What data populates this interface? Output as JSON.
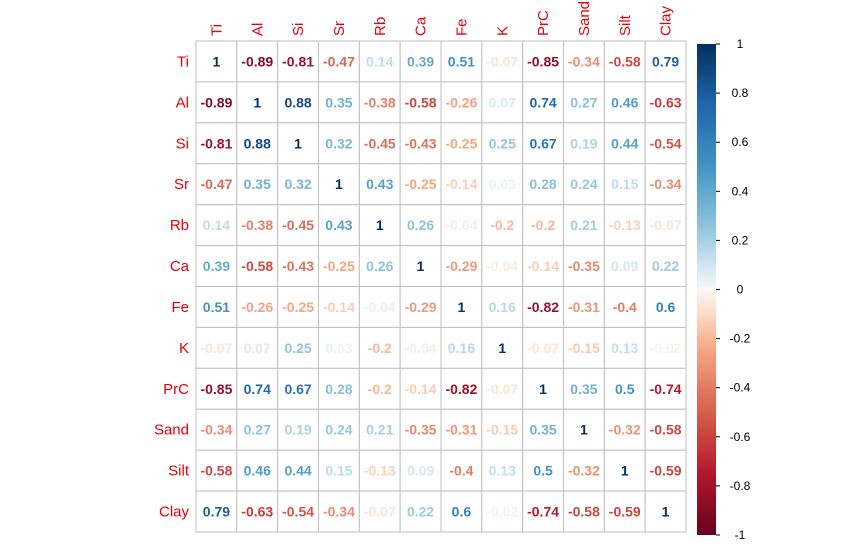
{
  "chart_data": {
    "type": "heatmap",
    "variables": [
      "Ti",
      "Al",
      "Si",
      "Sr",
      "Rb",
      "Ca",
      "Fe",
      "K",
      "PrC",
      "Sand",
      "Silt",
      "Clay"
    ],
    "values": [
      [
        1,
        -0.89,
        -0.81,
        -0.47,
        0.14,
        0.39,
        0.51,
        -0.07,
        -0.85,
        -0.34,
        -0.58,
        0.79
      ],
      [
        -0.89,
        1,
        0.88,
        0.35,
        -0.38,
        -0.58,
        -0.26,
        0.07,
        0.74,
        0.27,
        0.46,
        -0.63
      ],
      [
        -0.81,
        0.88,
        1,
        0.32,
        -0.45,
        -0.43,
        -0.25,
        0.25,
        0.67,
        0.19,
        0.44,
        -0.54
      ],
      [
        -0.47,
        0.35,
        0.32,
        1,
        0.43,
        -0.25,
        -0.14,
        0.03,
        0.28,
        0.24,
        0.15,
        -0.34
      ],
      [
        0.14,
        -0.38,
        -0.45,
        0.43,
        1,
        0.26,
        -0.04,
        -0.2,
        -0.2,
        0.21,
        -0.13,
        -0.07
      ],
      [
        0.39,
        -0.58,
        -0.43,
        -0.25,
        0.26,
        1,
        -0.29,
        -0.04,
        -0.14,
        -0.35,
        0.09,
        0.22
      ],
      [
        0.51,
        -0.26,
        -0.25,
        -0.14,
        -0.04,
        -0.29,
        1,
        0.16,
        -0.82,
        -0.31,
        -0.4,
        0.6
      ],
      [
        -0.07,
        0.07,
        0.25,
        0.03,
        -0.2,
        -0.04,
        0.16,
        1,
        -0.07,
        -0.15,
        0.13,
        -0.02
      ],
      [
        -0.85,
        0.74,
        0.67,
        0.28,
        -0.2,
        -0.14,
        -0.82,
        -0.07,
        1,
        0.35,
        0.5,
        -0.74
      ],
      [
        -0.34,
        0.27,
        0.19,
        0.24,
        0.21,
        -0.35,
        -0.31,
        -0.15,
        0.35,
        1,
        -0.32,
        -0.58
      ],
      [
        -0.58,
        0.46,
        0.44,
        0.15,
        -0.13,
        0.09,
        -0.4,
        0.13,
        0.5,
        -0.32,
        1,
        -0.59
      ],
      [
        0.79,
        -0.63,
        -0.54,
        -0.34,
        -0.07,
        0.22,
        0.6,
        -0.02,
        -0.74,
        -0.58,
        -0.59,
        1
      ]
    ],
    "colorbar": {
      "min": -1,
      "max": 1,
      "ticks": [
        "1",
        "0.8",
        "0.6",
        "0.4",
        "0.2",
        "0",
        "-0.2",
        "-0.4",
        "-0.6",
        "-0.8",
        "-1"
      ]
    },
    "colors": {
      "strong_negative": "#67001f",
      "neutral": "#f7f7f7",
      "strong_positive": "#053061",
      "label": "#e8000b",
      "grid": "#bfbfbf"
    },
    "legend": "right",
    "grid": true
  }
}
